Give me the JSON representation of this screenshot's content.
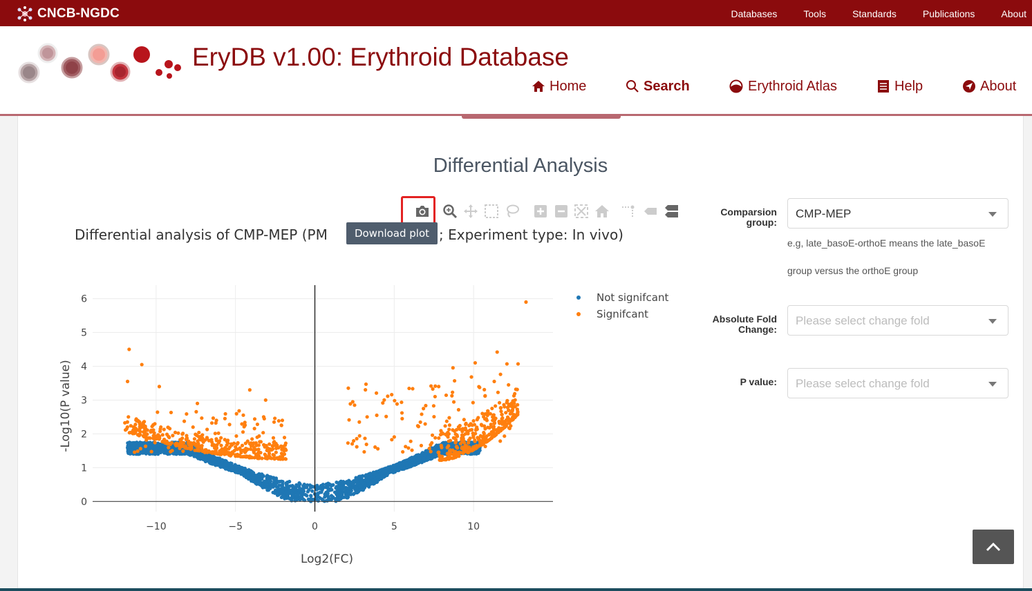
{
  "topbar": {
    "brand": "CNCB-NGDC",
    "nav": [
      "Databases",
      "Tools",
      "Standards",
      "Publications",
      "About"
    ]
  },
  "header": {
    "title": "EryDB v1.00: Erythroid Database",
    "nav": [
      {
        "label": "Home",
        "icon": "home-icon"
      },
      {
        "label": "Search",
        "icon": "search-icon",
        "active": true
      },
      {
        "label": "Erythroid Atlas",
        "icon": "atlas-icon"
      },
      {
        "label": "Help",
        "icon": "help-book-icon"
      },
      {
        "label": "About",
        "icon": "about-arrow-icon"
      }
    ]
  },
  "section_title": "Differential Analysis",
  "modebar": {
    "icons": [
      "camera-icon",
      "zoom-icon",
      "pan-icon",
      "box-select-icon",
      "lasso-select-icon",
      "zoom-in-icon",
      "zoom-out-icon",
      "autoscale-icon",
      "reset-axes-icon",
      "spike-lines-icon",
      "hover-closest-icon",
      "hover-compare-icon"
    ],
    "tooltip": "Download plot"
  },
  "plot": {
    "title_left": "Differential analysis of CMP-MEP (PM",
    "title_right": "; Experiment type: In vivo)"
  },
  "chart_data": {
    "type": "scatter",
    "xlabel": "Log2(FC)",
    "ylabel": "-Log10(P value)",
    "xlim": [
      -14,
      15
    ],
    "ylim": [
      -0.3,
      6.4
    ],
    "xticks": [
      -10,
      -5,
      0,
      5,
      10
    ],
    "xtick_labels": [
      "−10",
      "−5",
      "0",
      "5",
      "10"
    ],
    "yticks": [
      0,
      1,
      2,
      3,
      4,
      5,
      6
    ],
    "grid": true,
    "legend_position": "top-right",
    "series": [
      {
        "name": "Not signifcant",
        "color": "#1f77b4",
        "description_points": [
          [
            -12,
            2.3
          ],
          [
            -8,
            1.4
          ],
          [
            -5,
            0.9
          ],
          [
            -2,
            0.5
          ],
          [
            0,
            0
          ],
          [
            2,
            0.5
          ],
          [
            5,
            0.9
          ],
          [
            8,
            1.3
          ],
          [
            10,
            1.6
          ]
        ]
      },
      {
        "name": "Signifcant",
        "color": "#ff7f0e",
        "values": [
          [
            13.3,
            5.9
          ],
          [
            -11.7,
            4.5
          ],
          [
            -10.9,
            4.05
          ],
          [
            -11.8,
            3.55
          ],
          [
            -9.8,
            3.4
          ],
          [
            -4.1,
            3.3
          ],
          [
            -3.1,
            3.0
          ],
          [
            -7.4,
            2.9
          ],
          [
            10.1,
            4.1
          ],
          [
            12.1,
            4.07
          ],
          [
            12.8,
            4.07
          ],
          [
            8.8,
            3.57
          ],
          [
            11.3,
            3.55
          ],
          [
            7.8,
            3.4
          ],
          [
            12.2,
            3.45
          ],
          [
            3.9,
            2.55
          ],
          [
            5.5,
            2.45
          ],
          [
            -6.2,
            2.4
          ],
          [
            -2.1,
            2.25
          ],
          [
            2.8,
            2.35
          ]
        ]
      }
    ]
  },
  "form": {
    "comparison": {
      "label": "Comparsion group:",
      "value": "CMP-MEP",
      "hint_line1": "e.g, late_basoE-orthoE means the late_basoE",
      "hint_line2": "group versus the orthoE group"
    },
    "fold_change": {
      "label": "Absolute Fold Change:",
      "placeholder": "Please select change fold"
    },
    "p_value": {
      "label": "P value:",
      "placeholder": "Please select change fold"
    }
  },
  "colors": {
    "brand": "#8b0b0d",
    "not_significant": "#1f77b4",
    "significant": "#ff7f0e"
  }
}
